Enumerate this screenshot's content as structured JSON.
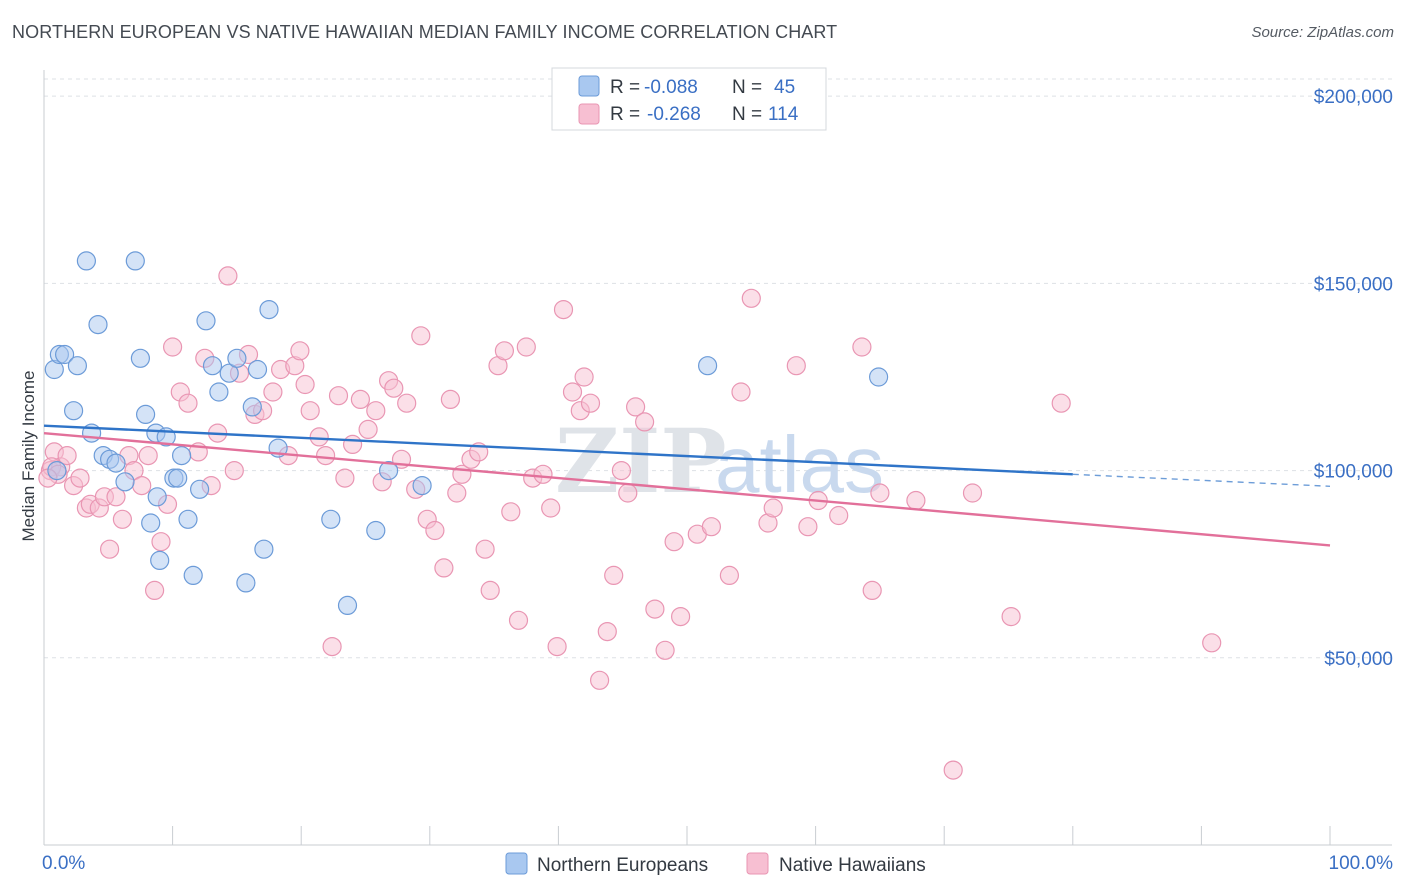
{
  "header": {
    "title": "NORTHERN EUROPEAN VS NATIVE HAWAIIAN MEDIAN FAMILY INCOME CORRELATION CHART",
    "source": "Source: ZipAtlas.com"
  },
  "watermark": {
    "zip": "ZIP",
    "atlas": "atlas"
  },
  "legend": {
    "r_label": "R =",
    "n_label": "N =",
    "rows": [
      {
        "r": "-0.088",
        "n": "45"
      },
      {
        "r": "-0.268",
        "n": "114"
      }
    ]
  },
  "chart_data": {
    "type": "scatter",
    "title": "NORTHERN EUROPEAN VS NATIVE HAWAIIAN MEDIAN FAMILY INCOME CORRELATION CHART",
    "ylabel": "Median Family Income",
    "xlabel": "",
    "xlim": [
      0,
      100
    ],
    "ylim": [
      0,
      215000
    ],
    "x_tick_labels": [
      "0.0%",
      "100.0%"
    ],
    "y_ticks": [
      {
        "value": 50000,
        "label": "$50,000"
      },
      {
        "value": 100000,
        "label": "$100,000"
      },
      {
        "value": 150000,
        "label": "$150,000"
      },
      {
        "value": 200000,
        "label": "$200,000"
      }
    ],
    "grid": true,
    "legend_position": "top-center",
    "colors": {
      "blue_fill": "#a9c8f0",
      "blue_stroke": "#6c9bd8",
      "blue_line": "#2f74c8",
      "pink_fill": "#f7bfd2",
      "pink_stroke": "#e996b3",
      "pink_line": "#e2709a"
    },
    "series": [
      {
        "name": "Northern Europeans",
        "trend": {
          "x0": 0,
          "y0": 112000,
          "x1": 80,
          "y1": 99000,
          "dash_to_x": 100,
          "dash_to_y": 95800
        },
        "points": [
          [
            0.8,
            127000
          ],
          [
            1.2,
            131000
          ],
          [
            1.6,
            131000
          ],
          [
            2.6,
            128000
          ],
          [
            3.3,
            156000
          ],
          [
            4.2,
            139000
          ],
          [
            4.6,
            104000
          ],
          [
            5.1,
            103000
          ],
          [
            3.7,
            110000
          ],
          [
            2.3,
            116000
          ],
          [
            7.1,
            156000
          ],
          [
            7.5,
            130000
          ],
          [
            7.9,
            115000
          ],
          [
            8.3,
            86000
          ],
          [
            8.7,
            110000
          ],
          [
            9.0,
            76000
          ],
          [
            9.5,
            109000
          ],
          [
            10.1,
            98000
          ],
          [
            10.4,
            98000
          ],
          [
            10.7,
            104000
          ],
          [
            11.2,
            87000
          ],
          [
            11.6,
            72000
          ],
          [
            12.1,
            95000
          ],
          [
            13.1,
            128000
          ],
          [
            13.6,
            121000
          ],
          [
            14.4,
            126000
          ],
          [
            15.0,
            130000
          ],
          [
            16.2,
            117000
          ],
          [
            16.6,
            127000
          ],
          [
            17.1,
            79000
          ],
          [
            17.5,
            143000
          ],
          [
            18.2,
            106000
          ],
          [
            22.3,
            87000
          ],
          [
            23.6,
            64000
          ],
          [
            25.8,
            84000
          ],
          [
            26.8,
            100000
          ],
          [
            29.4,
            96000
          ],
          [
            51.6,
            128000
          ],
          [
            64.9,
            125000
          ],
          [
            5.6,
            102000
          ],
          [
            6.3,
            97000
          ],
          [
            8.8,
            93000
          ],
          [
            12.6,
            140000
          ],
          [
            15.7,
            70000
          ],
          [
            1.0,
            100000
          ]
        ]
      },
      {
        "name": "Native Hawaiians",
        "trend": {
          "x0": 0,
          "y0": 110000,
          "x1": 100,
          "y1": 80000
        },
        "points": [
          [
            0.5,
            100000
          ],
          [
            0.8,
            105000
          ],
          [
            1.3,
            101000
          ],
          [
            1.8,
            104000
          ],
          [
            2.3,
            96000
          ],
          [
            2.8,
            98000
          ],
          [
            3.3,
            90000
          ],
          [
            3.6,
            91000
          ],
          [
            4.3,
            90000
          ],
          [
            4.7,
            93000
          ],
          [
            5.1,
            79000
          ],
          [
            5.6,
            93000
          ],
          [
            6.1,
            87000
          ],
          [
            6.6,
            104000
          ],
          [
            7.0,
            100000
          ],
          [
            7.6,
            96000
          ],
          [
            8.1,
            104000
          ],
          [
            8.6,
            68000
          ],
          [
            9.1,
            81000
          ],
          [
            9.6,
            91000
          ],
          [
            10.0,
            133000
          ],
          [
            10.6,
            121000
          ],
          [
            11.2,
            118000
          ],
          [
            12.0,
            105000
          ],
          [
            12.5,
            130000
          ],
          [
            13.0,
            96000
          ],
          [
            13.5,
            110000
          ],
          [
            14.3,
            152000
          ],
          [
            14.8,
            100000
          ],
          [
            15.2,
            126000
          ],
          [
            15.9,
            131000
          ],
          [
            16.4,
            115000
          ],
          [
            17.0,
            116000
          ],
          [
            17.8,
            121000
          ],
          [
            18.4,
            127000
          ],
          [
            19.0,
            104000
          ],
          [
            19.5,
            128000
          ],
          [
            19.9,
            132000
          ],
          [
            20.3,
            123000
          ],
          [
            20.7,
            116000
          ],
          [
            21.4,
            109000
          ],
          [
            21.9,
            104000
          ],
          [
            22.4,
            53000
          ],
          [
            22.9,
            120000
          ],
          [
            23.4,
            98000
          ],
          [
            24.0,
            107000
          ],
          [
            24.6,
            119000
          ],
          [
            25.2,
            111000
          ],
          [
            25.8,
            116000
          ],
          [
            26.3,
            97000
          ],
          [
            26.8,
            124000
          ],
          [
            27.2,
            122000
          ],
          [
            27.8,
            103000
          ],
          [
            28.2,
            118000
          ],
          [
            28.9,
            95000
          ],
          [
            29.3,
            136000
          ],
          [
            29.8,
            87000
          ],
          [
            30.4,
            84000
          ],
          [
            31.1,
            74000
          ],
          [
            31.6,
            119000
          ],
          [
            32.1,
            94000
          ],
          [
            32.5,
            99000
          ],
          [
            33.2,
            103000
          ],
          [
            33.8,
            105000
          ],
          [
            34.3,
            79000
          ],
          [
            34.7,
            68000
          ],
          [
            35.3,
            128000
          ],
          [
            35.8,
            132000
          ],
          [
            36.3,
            89000
          ],
          [
            36.9,
            60000
          ],
          [
            37.5,
            133000
          ],
          [
            38.0,
            98000
          ],
          [
            38.8,
            99000
          ],
          [
            39.4,
            90000
          ],
          [
            39.9,
            53000
          ],
          [
            40.4,
            143000
          ],
          [
            41.1,
            121000
          ],
          [
            41.7,
            116000
          ],
          [
            42.0,
            125000
          ],
          [
            42.5,
            118000
          ],
          [
            43.2,
            44000
          ],
          [
            43.8,
            57000
          ],
          [
            44.3,
            72000
          ],
          [
            44.9,
            100000
          ],
          [
            45.4,
            94000
          ],
          [
            46.0,
            117000
          ],
          [
            46.7,
            113000
          ],
          [
            47.5,
            63000
          ],
          [
            48.3,
            52000
          ],
          [
            49.0,
            81000
          ],
          [
            49.5,
            61000
          ],
          [
            50.8,
            83000
          ],
          [
            51.9,
            85000
          ],
          [
            53.3,
            72000
          ],
          [
            54.2,
            121000
          ],
          [
            55.0,
            146000
          ],
          [
            56.3,
            86000
          ],
          [
            56.7,
            90000
          ],
          [
            58.5,
            128000
          ],
          [
            59.4,
            85000
          ],
          [
            60.2,
            92000
          ],
          [
            61.8,
            88000
          ],
          [
            63.6,
            133000
          ],
          [
            64.4,
            68000
          ],
          [
            65.0,
            94000
          ],
          [
            67.8,
            92000
          ],
          [
            70.7,
            20000
          ],
          [
            72.2,
            94000
          ],
          [
            75.2,
            61000
          ],
          [
            79.1,
            118000
          ],
          [
            90.8,
            54000
          ],
          [
            0.6,
            101000
          ],
          [
            1.1,
            99000
          ],
          [
            0.3,
            98000
          ]
        ]
      }
    ]
  },
  "bottom_legend": [
    "Northern Europeans",
    "Native Hawaiians"
  ]
}
